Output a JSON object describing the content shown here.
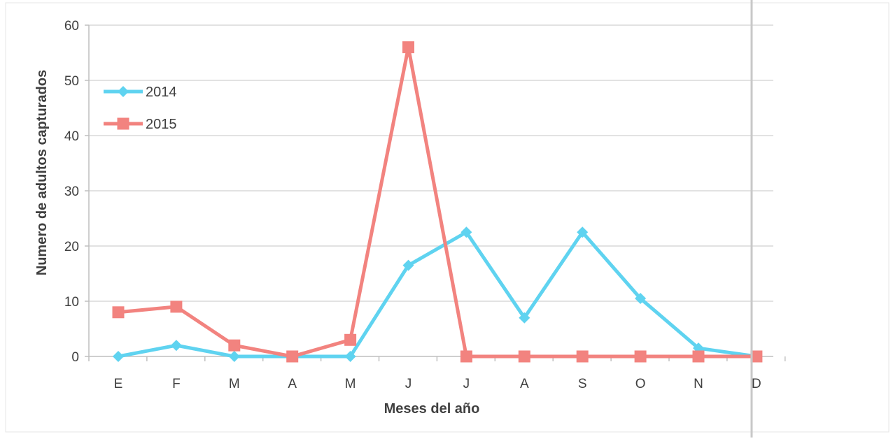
{
  "chart_data": {
    "type": "line",
    "title": "",
    "xlabel": "Meses del año",
    "ylabel": "Numero de adultos capturados",
    "categories": [
      "E",
      "F",
      "M",
      "A",
      "M",
      "J",
      "J",
      "A",
      "S",
      "O",
      "N",
      "D"
    ],
    "yticks": [
      "0",
      "10",
      "20",
      "30",
      "40",
      "50",
      "60"
    ],
    "ylim": [
      0,
      60
    ],
    "grid": true,
    "legend_position": "top-left",
    "series": [
      {
        "name": "2014",
        "color": "#5fd3f0",
        "marker": "diamond",
        "values": [
          0,
          2,
          0,
          0,
          0,
          16.5,
          22.5,
          7,
          22.5,
          10.5,
          1.5,
          0
        ]
      },
      {
        "name": "2015",
        "color": "#f2837f",
        "marker": "square",
        "values": [
          8,
          9,
          2,
          0,
          3,
          56,
          0,
          0,
          0,
          0,
          0,
          0
        ]
      }
    ]
  }
}
